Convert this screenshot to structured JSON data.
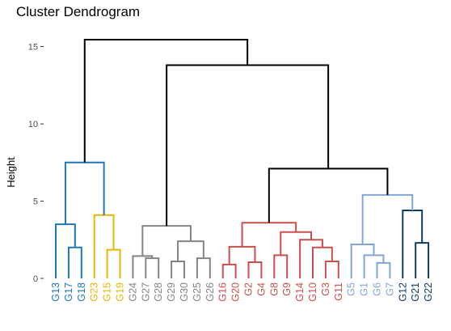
{
  "chart_data": {
    "type": "dendrogram",
    "title": "Cluster Dendrogram",
    "ylabel": "Height",
    "ylim": [
      0,
      15.5
    ],
    "yticks": [
      0,
      5,
      10,
      15
    ],
    "grid": false,
    "colors": {
      "root": "#000000",
      "blue": "#1f77b4",
      "yellow": "#e7b800",
      "gray": "#848484",
      "red": "#c9504a",
      "lightblue": "#7fa6d6",
      "navy": "#0b3c68"
    },
    "leaves": [
      {
        "id": "G13",
        "color": "blue"
      },
      {
        "id": "G17",
        "color": "blue"
      },
      {
        "id": "G18",
        "color": "blue"
      },
      {
        "id": "G23",
        "color": "yellow"
      },
      {
        "id": "G15",
        "color": "yellow"
      },
      {
        "id": "G19",
        "color": "yellow"
      },
      {
        "id": "G24",
        "color": "gray"
      },
      {
        "id": "G27",
        "color": "gray"
      },
      {
        "id": "G28",
        "color": "gray"
      },
      {
        "id": "G29",
        "color": "gray"
      },
      {
        "id": "G30",
        "color": "gray"
      },
      {
        "id": "G25",
        "color": "gray"
      },
      {
        "id": "G26",
        "color": "gray"
      },
      {
        "id": "G16",
        "color": "red"
      },
      {
        "id": "G20",
        "color": "red"
      },
      {
        "id": "G2",
        "color": "red"
      },
      {
        "id": "G4",
        "color": "red"
      },
      {
        "id": "G8",
        "color": "red"
      },
      {
        "id": "G9",
        "color": "red"
      },
      {
        "id": "G14",
        "color": "red"
      },
      {
        "id": "G10",
        "color": "red"
      },
      {
        "id": "G3",
        "color": "red"
      },
      {
        "id": "G11",
        "color": "red"
      },
      {
        "id": "G5",
        "color": "lightblue"
      },
      {
        "id": "G1",
        "color": "lightblue"
      },
      {
        "id": "G6",
        "color": "lightblue"
      },
      {
        "id": "G7",
        "color": "lightblue"
      },
      {
        "id": "G12",
        "color": "navy"
      },
      {
        "id": "G21",
        "color": "navy"
      },
      {
        "id": "G22",
        "color": "navy"
      }
    ],
    "merges": [
      {
        "left": "G17",
        "right": "G18",
        "height": 2.0,
        "color": "blue"
      },
      {
        "left": "G13",
        "right": 1,
        "height": 3.5,
        "color": "blue"
      },
      {
        "left": "G15",
        "right": "G19",
        "height": 1.85,
        "color": "yellow"
      },
      {
        "left": "G23",
        "right": 3,
        "height": 4.1,
        "color": "yellow"
      },
      {
        "left": 2,
        "right": 4,
        "height": 7.5,
        "color": "blue"
      },
      {
        "left": "G27",
        "right": "G28",
        "height": 1.3,
        "color": "gray"
      },
      {
        "left": "G24",
        "right": 6,
        "height": 1.45,
        "color": "gray"
      },
      {
        "left": "G29",
        "right": "G30",
        "height": 1.1,
        "color": "gray"
      },
      {
        "left": "G25",
        "right": "G26",
        "height": 1.3,
        "color": "gray"
      },
      {
        "left": 8,
        "right": 9,
        "height": 2.4,
        "color": "gray"
      },
      {
        "left": 7,
        "right": 10,
        "height": 3.4,
        "color": "gray"
      },
      {
        "left": "G16",
        "right": "G20",
        "height": 0.9,
        "color": "red"
      },
      {
        "left": "G2",
        "right": "G4",
        "height": 1.05,
        "color": "red"
      },
      {
        "left": 12,
        "right": 13,
        "height": 2.05,
        "color": "red"
      },
      {
        "left": "G8",
        "right": "G9",
        "height": 1.5,
        "color": "red"
      },
      {
        "left": "G3",
        "right": "G11",
        "height": 1.1,
        "color": "red"
      },
      {
        "left": "G10",
        "right": 16,
        "height": 2.0,
        "color": "red"
      },
      {
        "left": "G14",
        "right": 17,
        "height": 2.5,
        "color": "red"
      },
      {
        "left": 15,
        "right": 18,
        "height": 3.0,
        "color": "red"
      },
      {
        "left": 14,
        "right": 19,
        "height": 3.6,
        "color": "red"
      },
      {
        "left": "G6",
        "right": "G7",
        "height": 1.0,
        "color": "lightblue"
      },
      {
        "left": "G1",
        "right": 21,
        "height": 1.5,
        "color": "lightblue"
      },
      {
        "left": "G5",
        "right": 22,
        "height": 2.2,
        "color": "lightblue"
      },
      {
        "left": "G21",
        "right": "G22",
        "height": 2.3,
        "color": "navy"
      },
      {
        "left": "G12",
        "right": 24,
        "height": 4.4,
        "color": "navy"
      },
      {
        "left": 23,
        "right": 25,
        "height": 5.4,
        "color": "lightblue"
      },
      {
        "left": 20,
        "right": 26,
        "height": 7.1,
        "color": "root"
      },
      {
        "left": 11,
        "right": 27,
        "height": 13.8,
        "color": "root"
      },
      {
        "left": 5,
        "right": 28,
        "height": 15.45,
        "color": "root"
      }
    ]
  }
}
